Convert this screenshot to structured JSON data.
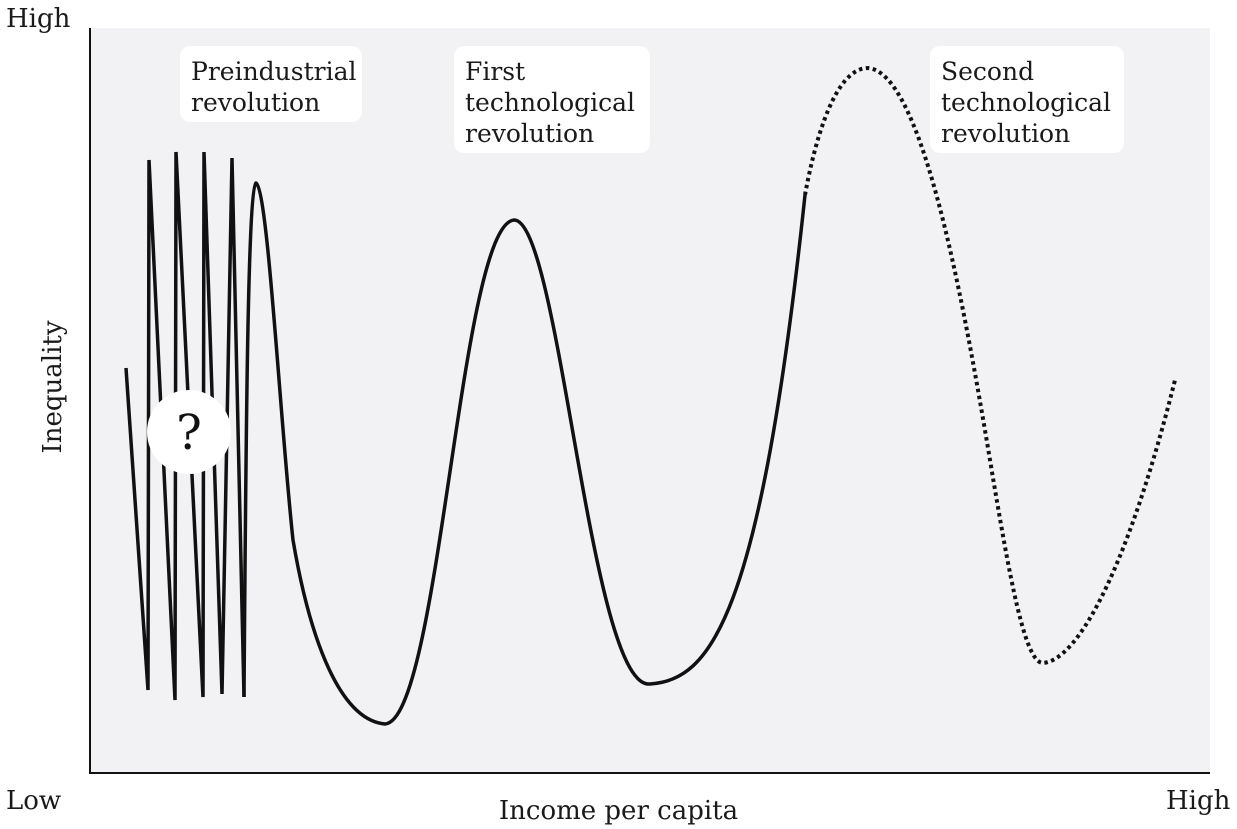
{
  "axes": {
    "x_title": "Income per capita",
    "y_title": "Inequality",
    "x_low": "Low",
    "x_high": "High",
    "y_high": "High"
  },
  "eras": [
    {
      "line1": "Preindustrial",
      "line2": "revolution",
      "line3": ""
    },
    {
      "line1": "First",
      "line2": "technological",
      "line3": "revolution"
    },
    {
      "line1": "Second",
      "line2": "technological",
      "line3": "revolution"
    }
  ],
  "uncertainty_marker": "?",
  "colors": {
    "background": "#f2f2f4",
    "curve": "#111111",
    "box": "#ffffff"
  }
}
